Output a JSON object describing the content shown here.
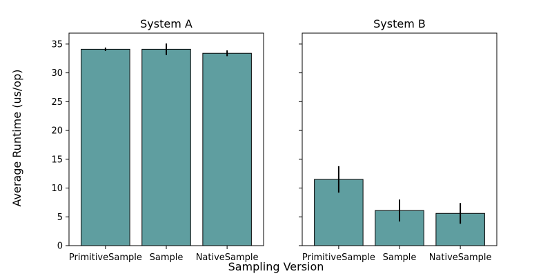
{
  "chart_data": {
    "type": "bar",
    "xlabel": "Sampling Version",
    "ylabel": "Average Runtime (us/op)",
    "ylim": [
      0,
      36.9
    ],
    "yticks": [
      0,
      5,
      10,
      15,
      20,
      25,
      30,
      35
    ],
    "shared_y": true,
    "bar_color": "#5f9ea0",
    "edge_color": "#000000",
    "error_bar_color": "#000000",
    "grid": false,
    "categories": [
      "PrimitiveSample",
      "Sample",
      "NativeSample"
    ],
    "panels": [
      {
        "title": "System A",
        "values": [
          34.1,
          34.1,
          33.4
        ],
        "errors": [
          0.3,
          1.0,
          0.5
        ]
      },
      {
        "title": "System B",
        "values": [
          11.5,
          6.1,
          5.6
        ],
        "errors": [
          2.3,
          1.9,
          1.8
        ]
      }
    ]
  }
}
